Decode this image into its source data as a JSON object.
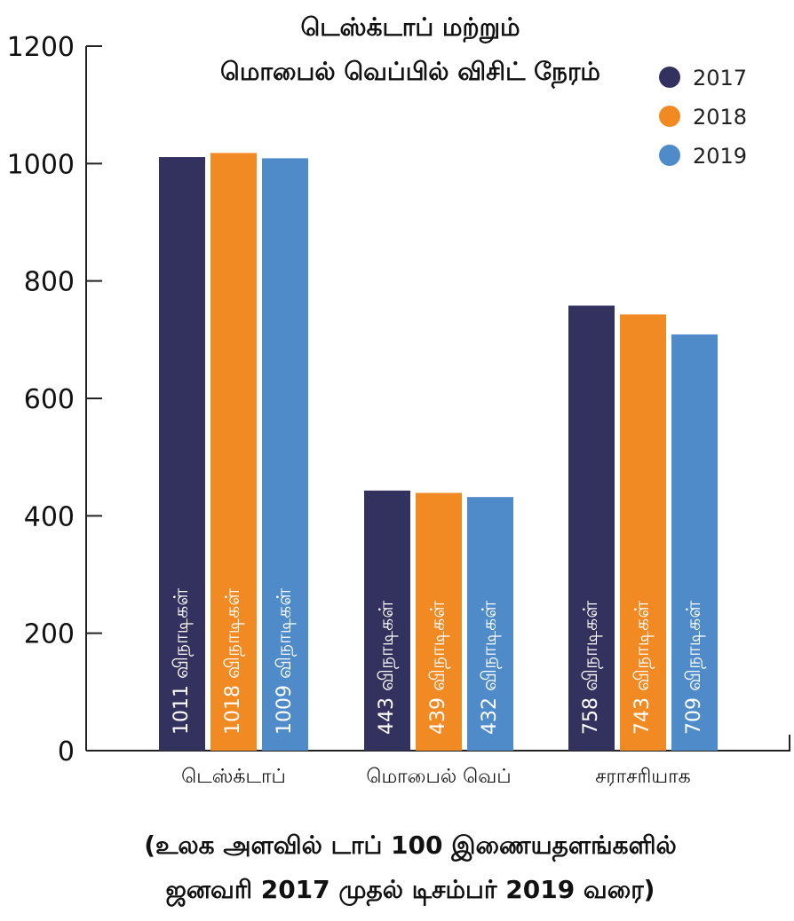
{
  "chart_data": {
    "type": "bar",
    "title_lines": [
      "டெஸ்க்டாப் மற்றும்",
      "மொபைல் வெப்பில் விசிட் நேரம்"
    ],
    "categories": [
      "டெஸ்க்டாப்",
      "மொபைல் வெப்",
      "சராசரியாக"
    ],
    "series": [
      {
        "name": "2017",
        "color": "#33325f",
        "values": [
          1011,
          443,
          758
        ]
      },
      {
        "name": "2018",
        "color": "#f28a24",
        "values": [
          1018,
          439,
          743
        ]
      },
      {
        "name": "2019",
        "color": "#4f8bc9",
        "values": [
          1009,
          432,
          709
        ]
      }
    ],
    "value_unit": "விநாடிகள்",
    "yticks": [
      0,
      200,
      400,
      600,
      800,
      1000,
      1200
    ],
    "ylim": [
      0,
      1200
    ],
    "xlabel": "",
    "ylabel": "",
    "grid": false,
    "legend_position": "top-right",
    "footnote_lines": [
      "(உலக அளவில் டாப் 100 இணையதளங்களில்",
      "ஜனவரி 2017 முதல் டிசம்பர் 2019 வரை)"
    ]
  }
}
